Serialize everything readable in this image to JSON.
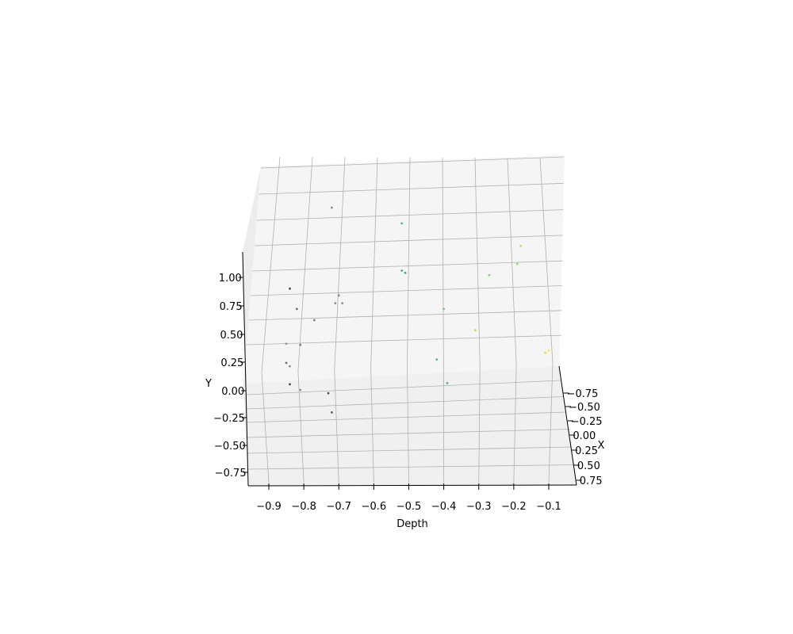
{
  "chart_data": {
    "type": "scatter",
    "projection": "3d",
    "title": "",
    "xlabel": "Depth",
    "ylabel": "Y",
    "zlabel": "X",
    "grid": true,
    "colormap": "viridis",
    "depth_ticks": [
      "−0.9",
      "−0.8",
      "−0.7",
      "−0.6",
      "−0.5",
      "−0.4",
      "−0.3",
      "−0.2",
      "−0.1"
    ],
    "y_ticks": [
      "−0.75",
      "−0.50",
      "−0.25",
      "0.00",
      "0.25",
      "0.50",
      "0.75",
      "1.00"
    ],
    "x_ticks": [
      "−0.75",
      "−0.50",
      "−0.25",
      "0.00",
      "0.25",
      "0.50",
      "0.75"
    ],
    "points": [
      {
        "depth": -0.72,
        "y": 1.62,
        "color": "#7a7a7a"
      },
      {
        "depth": -0.52,
        "y": 1.48,
        "color": "#3d9a8e"
      },
      {
        "depth": -0.18,
        "y": 1.28,
        "color": "#b5de2b"
      },
      {
        "depth": -0.19,
        "y": 1.12,
        "color": "#86d549"
      },
      {
        "depth": -0.52,
        "y": 1.06,
        "color": "#3a8f8a"
      },
      {
        "depth": -0.51,
        "y": 1.04,
        "color": "#3a8f8a"
      },
      {
        "depth": -0.27,
        "y": 1.02,
        "color": "#6ccd5a"
      },
      {
        "depth": -0.84,
        "y": 0.9,
        "color": "#2b2b2b"
      },
      {
        "depth": -0.7,
        "y": 0.84,
        "color": "#7a7a7a"
      },
      {
        "depth": -0.71,
        "y": 0.77,
        "color": "#7a7a7a"
      },
      {
        "depth": -0.69,
        "y": 0.77,
        "color": "#7a7a7a"
      },
      {
        "depth": -0.82,
        "y": 0.72,
        "color": "#555555"
      },
      {
        "depth": -0.4,
        "y": 0.72,
        "color": "#5ec962"
      },
      {
        "depth": -0.77,
        "y": 0.62,
        "color": "#6a6a6a"
      },
      {
        "depth": -0.31,
        "y": 0.53,
        "color": "#a0da39"
      },
      {
        "depth": -0.85,
        "y": 0.41,
        "color": "#8a8a8a"
      },
      {
        "depth": -0.81,
        "y": 0.4,
        "color": "#6a6a6a"
      },
      {
        "depth": -0.1,
        "y": 0.35,
        "color": "#fde725"
      },
      {
        "depth": -0.11,
        "y": 0.33,
        "color": "#d8e219"
      },
      {
        "depth": -0.42,
        "y": 0.27,
        "color": "#3aa57a"
      },
      {
        "depth": -0.85,
        "y": 0.24,
        "color": "#555555"
      },
      {
        "depth": -0.84,
        "y": 0.21,
        "color": "#7a7a7a"
      },
      {
        "depth": -0.39,
        "y": 0.06,
        "color": "#3aa57a"
      },
      {
        "depth": -0.84,
        "y": 0.05,
        "color": "#222222"
      },
      {
        "depth": -0.81,
        "y": 0.0,
        "color": "#7a7a7a"
      },
      {
        "depth": -0.73,
        "y": -0.03,
        "color": "#333333"
      },
      {
        "depth": -0.72,
        "y": -0.2,
        "color": "#444444"
      }
    ]
  }
}
